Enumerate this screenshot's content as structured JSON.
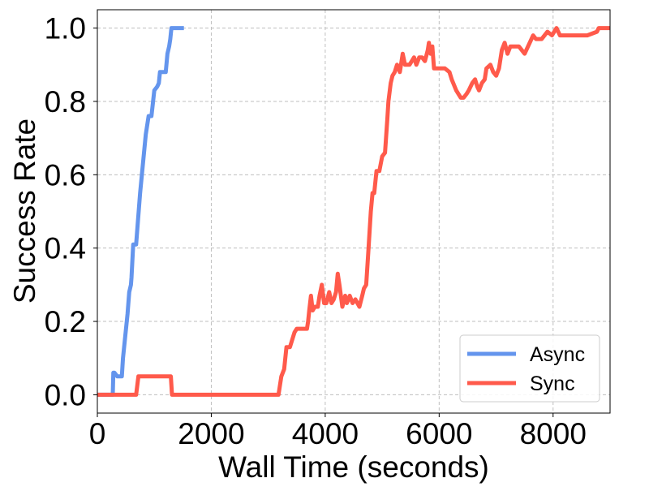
{
  "chart_data": {
    "type": "line",
    "title": "",
    "xlabel": "Wall Time (seconds)",
    "ylabel": "Success Rate",
    "xlim": [
      0,
      9000
    ],
    "ylim": [
      -0.05,
      1.05
    ],
    "xticks": [
      0,
      2000,
      4000,
      6000,
      8000
    ],
    "xtick_labels": [
      "0",
      "2000",
      "4000",
      "6000",
      "8000"
    ],
    "yticks": [
      0.0,
      0.2,
      0.4,
      0.6,
      0.8,
      1.0
    ],
    "ytick_labels": [
      "0.0",
      "0.2",
      "0.4",
      "0.6",
      "0.8",
      "1.0"
    ],
    "grid": true,
    "legend_position": "lower-right",
    "series": [
      {
        "name": "Async",
        "color": "#6495ED",
        "x": [
          0,
          270,
          280,
          300,
          350,
          400,
          430,
          450,
          470,
          490,
          530,
          560,
          590,
          600,
          630,
          680,
          700,
          750,
          800,
          850,
          900,
          950,
          1000,
          1050,
          1080,
          1100,
          1150,
          1200,
          1230,
          1260,
          1280,
          1300,
          1330,
          1360,
          1400,
          1450,
          1520
        ],
        "y": [
          0.0,
          0.0,
          0.06,
          0.06,
          0.05,
          0.05,
          0.05,
          0.1,
          0.13,
          0.16,
          0.22,
          0.28,
          0.3,
          0.32,
          0.41,
          0.41,
          0.45,
          0.55,
          0.63,
          0.71,
          0.76,
          0.76,
          0.83,
          0.84,
          0.85,
          0.88,
          0.88,
          0.88,
          0.93,
          0.95,
          0.97,
          1.0,
          1.0,
          1.0,
          1.0,
          1.0,
          1.0
        ]
      },
      {
        "name": "Sync",
        "color": "#FF5A4B",
        "x": [
          0,
          680,
          720,
          900,
          1100,
          1290,
          1310,
          2000,
          3000,
          3180,
          3230,
          3280,
          3320,
          3380,
          3420,
          3460,
          3500,
          3560,
          3620,
          3680,
          3700,
          3720,
          3750,
          3780,
          3820,
          3870,
          3900,
          3940,
          3980,
          4020,
          4070,
          4110,
          4150,
          4190,
          4220,
          4250,
          4300,
          4350,
          4380,
          4430,
          4480,
          4530,
          4600,
          4650,
          4680,
          4720,
          4760,
          4800,
          4830,
          4860,
          4900,
          4950,
          5000,
          5050,
          5090,
          5110,
          5150,
          5180,
          5220,
          5260,
          5310,
          5360,
          5400,
          5440,
          5480,
          5520,
          5560,
          5600,
          5650,
          5700,
          5750,
          5800,
          5820,
          5850,
          5880,
          5910,
          5950,
          6000,
          6100,
          6180,
          6220,
          6300,
          6380,
          6430,
          6480,
          6520,
          6580,
          6630,
          6670,
          6700,
          6750,
          6800,
          6830,
          6900,
          6950,
          7000,
          7050,
          7100,
          7150,
          7200,
          7250,
          7300,
          7400,
          7500,
          7650,
          7700,
          7800,
          7900,
          7980,
          8020,
          8060,
          8120,
          8200,
          8400,
          8600,
          8770,
          8800,
          8900,
          9000
        ],
        "y": [
          0.0,
          0.0,
          0.05,
          0.05,
          0.05,
          0.05,
          0.0,
          0.0,
          0.0,
          0.0,
          0.05,
          0.07,
          0.13,
          0.13,
          0.15,
          0.17,
          0.18,
          0.18,
          0.18,
          0.18,
          0.2,
          0.23,
          0.27,
          0.23,
          0.24,
          0.24,
          0.27,
          0.3,
          0.25,
          0.25,
          0.28,
          0.25,
          0.26,
          0.28,
          0.33,
          0.3,
          0.24,
          0.27,
          0.25,
          0.27,
          0.25,
          0.26,
          0.24,
          0.27,
          0.29,
          0.3,
          0.4,
          0.5,
          0.55,
          0.55,
          0.61,
          0.61,
          0.65,
          0.66,
          0.75,
          0.8,
          0.85,
          0.87,
          0.88,
          0.9,
          0.88,
          0.93,
          0.9,
          0.9,
          0.9,
          0.91,
          0.92,
          0.9,
          0.92,
          0.92,
          0.91,
          0.94,
          0.96,
          0.93,
          0.95,
          0.89,
          0.89,
          0.89,
          0.89,
          0.88,
          0.86,
          0.83,
          0.81,
          0.81,
          0.82,
          0.83,
          0.85,
          0.86,
          0.84,
          0.83,
          0.85,
          0.86,
          0.89,
          0.9,
          0.88,
          0.87,
          0.89,
          0.94,
          0.96,
          0.93,
          0.95,
          0.95,
          0.95,
          0.93,
          0.98,
          0.97,
          0.97,
          0.99,
          0.98,
          0.99,
          1.0,
          0.98,
          0.98,
          0.98,
          0.98,
          0.99,
          1.0,
          1.0,
          1.0
        ]
      }
    ]
  }
}
